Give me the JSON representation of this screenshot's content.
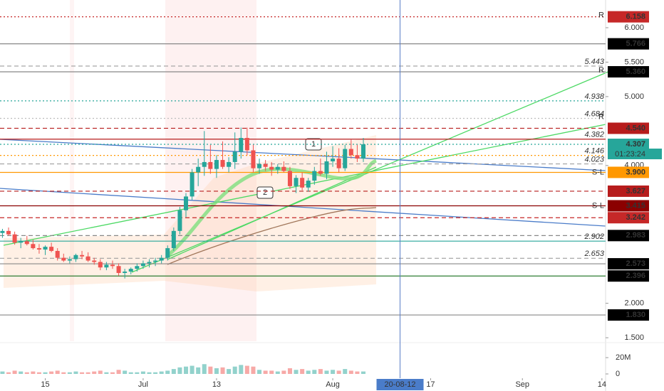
{
  "chart_data": {
    "type": "candlestick",
    "up_color": "#26a69a",
    "down_color": "#ef5350",
    "x": [
      160,
      161,
      162,
      163,
      164,
      165,
      166,
      167,
      168,
      169,
      170,
      171,
      172,
      173,
      174,
      175,
      176,
      177,
      178,
      179,
      180,
      181,
      182,
      183,
      184,
      185,
      186,
      187,
      188,
      189,
      190,
      191,
      192,
      193,
      194,
      195,
      196,
      197,
      198,
      199,
      200,
      201,
      202,
      203,
      204,
      205,
      206,
      207,
      208,
      209,
      210,
      211,
      212,
      213,
      214,
      215,
      216,
      217,
      218,
      219
    ],
    "open": [
      3.02,
      3.05,
      3.0,
      2.88,
      2.9,
      2.86,
      2.8,
      2.78,
      2.82,
      2.76,
      2.66,
      2.62,
      2.64,
      2.7,
      2.68,
      2.62,
      2.6,
      2.52,
      2.56,
      2.54,
      2.44,
      2.46,
      2.5,
      2.54,
      2.58,
      2.6,
      2.62,
      2.66,
      2.8,
      3.05,
      3.35,
      3.55,
      3.9,
      3.98,
      4.05,
      3.95,
      4.08,
      3.98,
      4.05,
      4.2,
      4.4,
      4.22,
      3.96,
      4.02,
      3.98,
      3.94,
      3.98,
      3.92,
      3.7,
      3.82,
      3.68,
      3.78,
      3.92,
      3.88,
      4.06,
      4.1,
      3.96,
      4.24,
      4.15,
      4.1
    ],
    "high": [
      3.08,
      3.1,
      3.04,
      2.95,
      2.98,
      2.92,
      2.86,
      2.84,
      2.88,
      2.8,
      2.72,
      2.68,
      2.72,
      2.76,
      2.74,
      2.66,
      2.64,
      2.6,
      2.62,
      2.58,
      2.5,
      2.52,
      2.58,
      2.62,
      2.64,
      2.66,
      2.7,
      2.84,
      3.1,
      3.4,
      3.6,
      3.95,
      4.1,
      4.5,
      4.3,
      4.15,
      4.35,
      4.12,
      4.48,
      4.55,
      4.55,
      4.3,
      4.1,
      4.08,
      4.05,
      4.02,
      4.06,
      3.98,
      3.86,
      3.9,
      3.82,
      3.98,
      4.1,
      4.2,
      4.28,
      4.25,
      4.3,
      4.38,
      4.3,
      4.4
    ],
    "low": [
      2.95,
      2.98,
      2.85,
      2.8,
      2.84,
      2.78,
      2.72,
      2.7,
      2.74,
      2.62,
      2.6,
      2.58,
      2.6,
      2.64,
      2.6,
      2.56,
      2.48,
      2.48,
      2.5,
      2.4,
      2.36,
      2.42,
      2.46,
      2.5,
      2.52,
      2.54,
      2.58,
      2.62,
      2.76,
      3.0,
      3.25,
      3.5,
      3.7,
      3.85,
      3.88,
      3.82,
      3.95,
      3.9,
      3.95,
      4.1,
      4.15,
      3.9,
      3.88,
      3.92,
      3.85,
      3.88,
      3.9,
      3.66,
      3.6,
      3.64,
      3.62,
      3.72,
      3.85,
      3.8,
      3.98,
      3.9,
      3.92,
      4.1,
      4.05,
      4.05
    ],
    "close": [
      3.05,
      3.0,
      2.88,
      2.9,
      2.86,
      2.8,
      2.78,
      2.82,
      2.76,
      2.66,
      2.62,
      2.64,
      2.7,
      2.68,
      2.62,
      2.6,
      2.52,
      2.56,
      2.54,
      2.44,
      2.46,
      2.5,
      2.54,
      2.58,
      2.6,
      2.62,
      2.66,
      2.8,
      3.05,
      3.35,
      3.55,
      3.9,
      3.98,
      4.05,
      3.95,
      4.08,
      3.98,
      4.05,
      4.2,
      4.4,
      4.22,
      3.96,
      4.02,
      3.98,
      3.94,
      3.98,
      3.92,
      3.7,
      3.82,
      3.68,
      3.78,
      3.92,
      3.88,
      4.06,
      4.1,
      3.96,
      4.24,
      4.15,
      4.1,
      4.307
    ],
    "volume": [
      3,
      2,
      4,
      3,
      2,
      3,
      2,
      2,
      3,
      4,
      2,
      2,
      3,
      2,
      2,
      3,
      4,
      2,
      2,
      5,
      4,
      2,
      2,
      3,
      2,
      2,
      3,
      4,
      6,
      8,
      9,
      10,
      8,
      12,
      9,
      7,
      8,
      6,
      9,
      11,
      10,
      9,
      5,
      4,
      4,
      3,
      4,
      7,
      5,
      6,
      4,
      5,
      6,
      4,
      5,
      4,
      6,
      4,
      3,
      3
    ],
    "xlim": [
      159.6,
      258.6
    ],
    "xticks": [
      {
        "value": 167,
        "label": "15"
      },
      {
        "value": 183,
        "label": "Jul"
      },
      {
        "value": 195,
        "label": "13"
      },
      {
        "value": 214,
        "label": "Aug"
      },
      {
        "value": 230,
        "label": "17"
      },
      {
        "value": 245,
        "label": "Sep"
      },
      {
        "value": 258,
        "label": "14"
      }
    ],
    "ylim": [
      1.449,
      6.402
    ],
    "yticks": [
      {
        "value": 6,
        "label": "6.000"
      },
      {
        "value": 5.5,
        "label": "5.500"
      },
      {
        "value": 5,
        "label": "5.000"
      },
      {
        "value": 4,
        "label": "4.000"
      },
      {
        "value": 2,
        "label": "2.000"
      },
      {
        "value": 1.5,
        "label": "1.500"
      }
    ],
    "volume_ylim": [
      -3.5,
      34
    ],
    "volume_yticks": [
      {
        "value": 20,
        "label": "20M"
      },
      0
    ],
    "price_lines": [
      {
        "price": 6.158,
        "color": "#c62828",
        "dash": "dotted",
        "tag": "filled",
        "note": "R"
      },
      {
        "price": 5.766,
        "color": "#888888",
        "dash": "solid",
        "tag": "black"
      },
      {
        "price": 5.443,
        "color": "#9e9e9e",
        "dash": "dashed",
        "tag": "plain"
      },
      {
        "price": {
          "value": 5.36,
          "label": "5.360"
        },
        "color": "#888888",
        "dash": "solid",
        "tag": "black",
        "note": "R"
      },
      {
        "price": 4.938,
        "color": "#26a69a",
        "dash": "dotted",
        "tag": "plain"
      },
      {
        "price": 4.684,
        "color": "#bdbdbd",
        "dash": "dotted",
        "tag": "plain",
        "note": "R"
      },
      {
        "price": {
          "value": 4.54,
          "label": "4.540"
        },
        "color": "#b71c1c",
        "dash": "dashed",
        "tag": "filled"
      },
      {
        "price": 4.382,
        "color": "#b71c1c",
        "dash": "solid",
        "tag": "plain"
      },
      {
        "price": 4.307,
        "color": "#26a69a",
        "dash": "dotted",
        "tag": "filled"
      },
      {
        "price": 4.146,
        "color": "#ff9800",
        "dash": "dotted",
        "tag": "plain"
      },
      {
        "price": 4.023,
        "color": "#9e9e9e",
        "dash": "dashed",
        "tag": "plain"
      },
      {
        "price": {
          "value": 3.9,
          "label": "3.900"
        },
        "color": "#ff9800",
        "dash": "solid",
        "tag": "filled",
        "note": "S-L"
      },
      {
        "price": 3.627,
        "color": "#b71c1c",
        "dash": "dashed",
        "tag": "filled"
      },
      {
        "price": 3.415,
        "color": "#8b0000",
        "dash": "solid",
        "tag": "filled",
        "note": "S-L"
      },
      {
        "price": 3.242,
        "color": "#c62828",
        "dash": "dashed",
        "tag": "filled"
      },
      {
        "price": 2.983,
        "color": "#888888",
        "dash": "dashed",
        "tag": "black"
      },
      {
        "price": 2.902,
        "color": "#26a69a",
        "dash": "solid",
        "tag": "plain"
      },
      {
        "price": 2.653,
        "color": "#9e9e9e",
        "dash": "dashed",
        "tag": "plain"
      },
      {
        "price": 2.573,
        "color": "#888888",
        "dash": "solid",
        "tag": "black"
      },
      {
        "price": 2.396,
        "color": "#2e7d32",
        "dash": "solid",
        "tag": "black"
      },
      {
        "price": {
          "value": 1.83,
          "label": "1.830"
        },
        "color": "#888888",
        "dash": "solid",
        "tag": "black"
      }
    ],
    "countdown": "01:23:24",
    "crosshair": {
      "x": 225,
      "label": "20-08-12"
    },
    "annotations": [
      "1",
      "2"
    ]
  }
}
